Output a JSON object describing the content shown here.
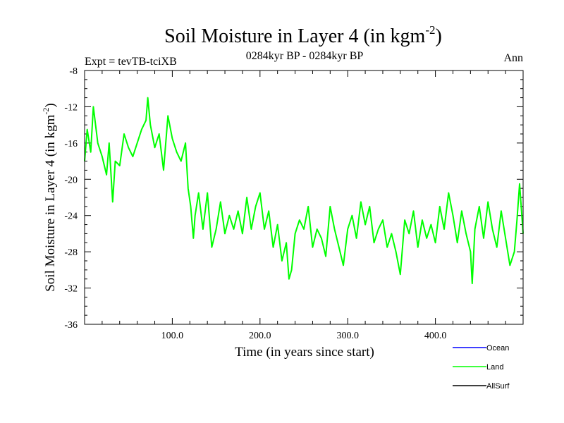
{
  "chart_data": {
    "type": "line",
    "title": "Soil Moisture in Layer 4 (in kgm",
    "title_sup": "-2",
    "title_close": ")",
    "subtitle_left": "Expt = tevTB-tciXB",
    "subtitle_center": "0284kyr BP - 0284kyr BP",
    "subtitle_right": "Ann",
    "xlabel": "Time (in years since start)",
    "ylabel": "Soil Moisture in Layer 4 (in kgm",
    "ylabel_sup": "-2",
    "ylabel_close": ")",
    "xlim": [
      0,
      500
    ],
    "ylim": [
      -36,
      -8
    ],
    "xticks": [
      100,
      200,
      300,
      400
    ],
    "xtick_labels": [
      "100.0",
      "200.0",
      "300.0",
      "400.0"
    ],
    "yticks": [
      -8,
      -12,
      -16,
      -20,
      -24,
      -28,
      -32,
      -36
    ],
    "ytick_labels": [
      "-8",
      "-12",
      "-16",
      "-20",
      "-24",
      "-28",
      "-32",
      "-36"
    ],
    "legend": [
      {
        "name": "Ocean",
        "color": "#0000ff"
      },
      {
        "name": "Land",
        "color": "#00ff00"
      },
      {
        "name": "AllSurf",
        "color": "#000000"
      }
    ],
    "series": [
      {
        "name": "Land",
        "color": "#00ff00",
        "x": [
          0,
          3,
          7,
          10,
          15,
          20,
          25,
          28,
          32,
          35,
          40,
          45,
          50,
          55,
          60,
          65,
          70,
          72,
          75,
          80,
          85,
          90,
          95,
          100,
          105,
          110,
          115,
          118,
          121,
          124,
          126,
          130,
          135,
          140,
          145,
          150,
          155,
          160,
          165,
          170,
          175,
          180,
          185,
          190,
          195,
          200,
          205,
          210,
          215,
          220,
          225,
          230,
          233,
          236,
          240,
          245,
          250,
          255,
          260,
          265,
          270,
          275,
          280,
          285,
          290,
          295,
          300,
          305,
          310,
          315,
          320,
          325,
          330,
          335,
          340,
          345,
          350,
          355,
          360,
          365,
          370,
          375,
          380,
          385,
          390,
          395,
          400,
          405,
          410,
          415,
          420,
          425,
          430,
          435,
          440,
          442,
          445,
          450,
          455,
          460,
          465,
          470,
          475,
          480,
          485,
          490,
          493,
          496,
          500
        ],
        "values": [
          -18,
          -14.5,
          -17,
          -12,
          -16,
          -17.5,
          -19.5,
          -16,
          -22.5,
          -18,
          -18.5,
          -15,
          -16.5,
          -17.5,
          -16,
          -14.5,
          -13.5,
          -11,
          -14,
          -16.5,
          -15,
          -19,
          -13,
          -15.5,
          -17,
          -18,
          -16,
          -21,
          -23,
          -26.5,
          -24,
          -21.5,
          -25.5,
          -21.5,
          -27.5,
          -25.5,
          -22.5,
          -26,
          -24,
          -25.5,
          -23.5,
          -26,
          -22,
          -25.5,
          -23,
          -21.5,
          -25.5,
          -23.5,
          -27.5,
          -25,
          -29,
          -27,
          -31,
          -30,
          -26,
          -24.5,
          -25.5,
          -23,
          -27.5,
          -25.5,
          -26.5,
          -28.5,
          -23,
          -25.5,
          -27.5,
          -29.5,
          -25.5,
          -24,
          -26.5,
          -22.5,
          -25,
          -23,
          -27,
          -25.5,
          -24.5,
          -27.5,
          -26,
          -28,
          -30.5,
          -24.5,
          -26,
          -23.5,
          -27.5,
          -24.5,
          -26.5,
          -25,
          -27,
          -23,
          -25.5,
          -21.5,
          -24,
          -27,
          -23.5,
          -26,
          -28,
          -31.5,
          -25.5,
          -23,
          -26.5,
          -22.5,
          -25.5,
          -27.5,
          -23.5,
          -26.5,
          -29.5,
          -28,
          -24.5,
          -20.5,
          -26
        ]
      }
    ]
  }
}
